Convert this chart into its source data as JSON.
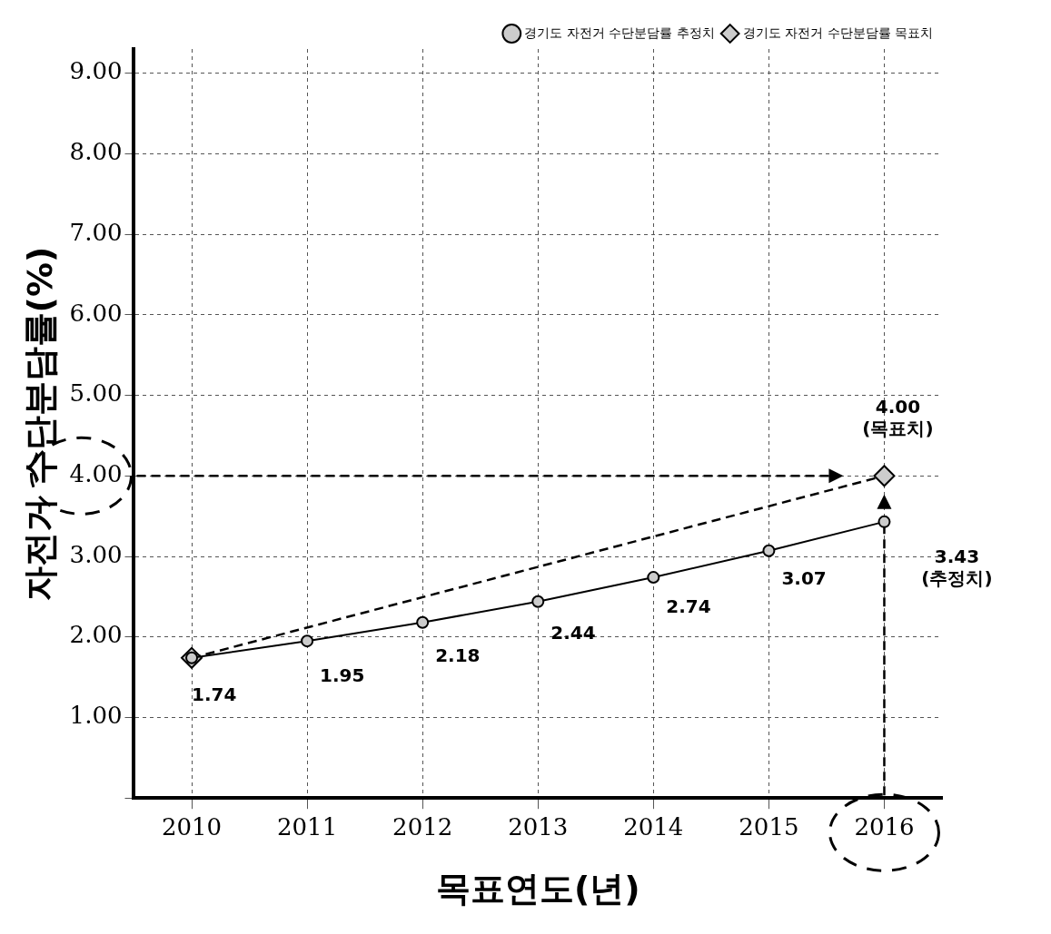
{
  "chart_data": {
    "type": "line",
    "xlabel": "목표연도(년)",
    "ylabel": "자전거 수단분담률(%)",
    "categories": [
      "2010",
      "2011",
      "2012",
      "2013",
      "2014",
      "2015",
      "2016"
    ],
    "series": [
      {
        "name": "경기도 자전거 수단분담률 추정치",
        "color": "#000000",
        "marker": "circle",
        "line_style": "solid",
        "values": [
          1.74,
          1.95,
          2.18,
          2.44,
          2.74,
          3.07,
          3.43
        ],
        "value_labels": [
          "1.74",
          "1.95",
          "2.18",
          "2.44",
          "2.74",
          "3.07",
          null
        ]
      },
      {
        "name": "경기도 자전거 수단분담률 목표치",
        "color": "#000000",
        "marker": "diamond",
        "line_style": "dashed",
        "values": [
          1.74,
          null,
          null,
          null,
          null,
          null,
          4.0
        ]
      }
    ],
    "ylim": [
      0,
      9.3
    ],
    "yticks": [
      {
        "value": 0,
        "label": null
      },
      {
        "value": 1,
        "label": "1.00"
      },
      {
        "value": 2,
        "label": "2.00"
      },
      {
        "value": 3,
        "label": "3.00"
      },
      {
        "value": 4,
        "label": "4.00"
      },
      {
        "value": 5,
        "label": "5.00"
      },
      {
        "value": 6,
        "label": "6.00"
      },
      {
        "value": 7,
        "label": "7.00"
      },
      {
        "value": 8,
        "label": "8.00"
      },
      {
        "value": 9,
        "label": "9.00"
      }
    ],
    "annotations": [
      {
        "text": "4.00\n(목표치)",
        "x": "2016",
        "y": 4.0
      },
      {
        "text": "3.43\n(추정치)",
        "x": "2016",
        "y": 3.43
      }
    ],
    "ref_lines": [
      {
        "axis": "y",
        "value": 4.0,
        "line_style": "dashed"
      },
      {
        "axis": "x",
        "value": "2016",
        "line_style": "dashed"
      }
    ],
    "grid": true,
    "legend": "top right"
  }
}
